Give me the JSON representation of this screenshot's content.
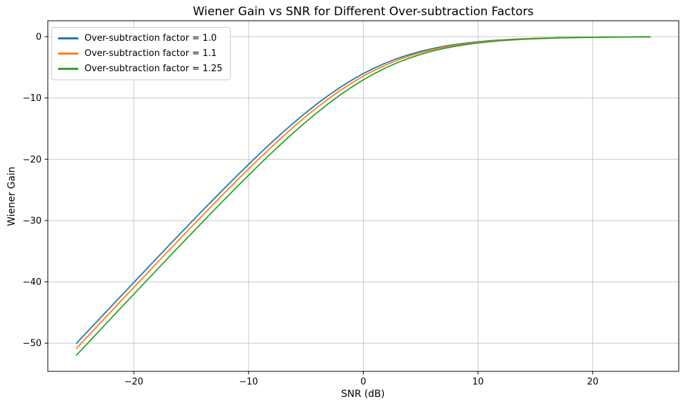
{
  "chart_data": {
    "type": "line",
    "title": "Wiener Gain vs SNR for Different Over-subtraction Factors",
    "xlabel": "SNR (dB)",
    "ylabel": "Wiener Gain",
    "xlim": [
      -27.5,
      27.5
    ],
    "ylim": [
      -54.6,
      2.6
    ],
    "xticks": [
      -20,
      -10,
      0,
      10,
      20
    ],
    "yticks": [
      0,
      -10,
      -20,
      -30,
      -40,
      -50
    ],
    "grid": true,
    "grid_color": "#c9c9c9",
    "spine_color": "#000000",
    "legend_position": "upper left",
    "x": [
      -25,
      -24,
      -23,
      -22,
      -21,
      -20,
      -19,
      -18,
      -17,
      -16,
      -15,
      -14,
      -13,
      -12,
      -11,
      -10,
      -9,
      -8,
      -7,
      -6,
      -5,
      -4,
      -3,
      -2,
      -1,
      0,
      1,
      2,
      3,
      4,
      5,
      6,
      7,
      8,
      9,
      10,
      11,
      12,
      13,
      14,
      15,
      16,
      17,
      18,
      19,
      20,
      21,
      22,
      23,
      24,
      25
    ],
    "series": [
      {
        "name": "Over-subtraction factor = 1.0",
        "color": "#1f77b4",
        "values": [
          -50.03,
          -48.03,
          -46.04,
          -44.05,
          -42.07,
          -40.09,
          -38.11,
          -36.14,
          -34.17,
          -32.22,
          -30.27,
          -28.34,
          -26.43,
          -24.53,
          -22.66,
          -20.83,
          -19.03,
          -17.28,
          -15.58,
          -13.95,
          -12.39,
          -10.91,
          -9.53,
          -8.25,
          -7.08,
          -6.02,
          -5.08,
          -4.25,
          -3.53,
          -2.91,
          -2.39,
          -1.95,
          -1.58,
          -1.28,
          -1.03,
          -0.83,
          -0.66,
          -0.53,
          -0.42,
          -0.34,
          -0.27,
          -0.22,
          -0.17,
          -0.14,
          -0.11,
          -0.09,
          -0.07,
          -0.05,
          -0.04,
          -0.03,
          -0.03
        ]
      },
      {
        "name": "Over-subtraction factor = 1.1",
        "color": "#ff7f0e",
        "values": [
          -50.85,
          -48.86,
          -46.87,
          -44.88,
          -42.89,
          -40.91,
          -38.93,
          -36.95,
          -34.98,
          -33.02,
          -31.07,
          -29.14,
          -27.22,
          -25.31,
          -23.43,
          -21.58,
          -19.77,
          -18.0,
          -16.28,
          -14.61,
          -13.02,
          -11.51,
          -10.09,
          -8.77,
          -7.55,
          -6.44,
          -5.45,
          -4.58,
          -3.81,
          -3.15,
          -2.59,
          -2.12,
          -1.72,
          -1.4,
          -1.13,
          -0.91,
          -0.73,
          -0.58,
          -0.47,
          -0.37,
          -0.3,
          -0.24,
          -0.19,
          -0.15,
          -0.12,
          -0.1,
          -0.08,
          -0.06,
          -0.05,
          -0.04,
          -0.03
        ]
      },
      {
        "name": "Over-subtraction factor = 1.25",
        "color": "#2ca02c",
        "values": [
          -51.96,
          -49.97,
          -47.97,
          -45.98,
          -43.99,
          -42.01,
          -40.03,
          -38.05,
          -36.08,
          -34.11,
          -32.16,
          -30.21,
          -28.28,
          -26.37,
          -24.47,
          -22.61,
          -20.77,
          -18.98,
          -17.22,
          -15.53,
          -13.9,
          -12.34,
          -10.87,
          -9.49,
          -8.21,
          -7.04,
          -5.99,
          -5.05,
          -4.22,
          -3.51,
          -2.89,
          -2.37,
          -1.93,
          -1.57,
          -1.27,
          -1.02,
          -0.82,
          -0.66,
          -0.53,
          -0.42,
          -0.34,
          -0.27,
          -0.21,
          -0.17,
          -0.14,
          -0.11,
          -0.09,
          -0.07,
          -0.05,
          -0.04,
          -0.03
        ]
      }
    ]
  }
}
